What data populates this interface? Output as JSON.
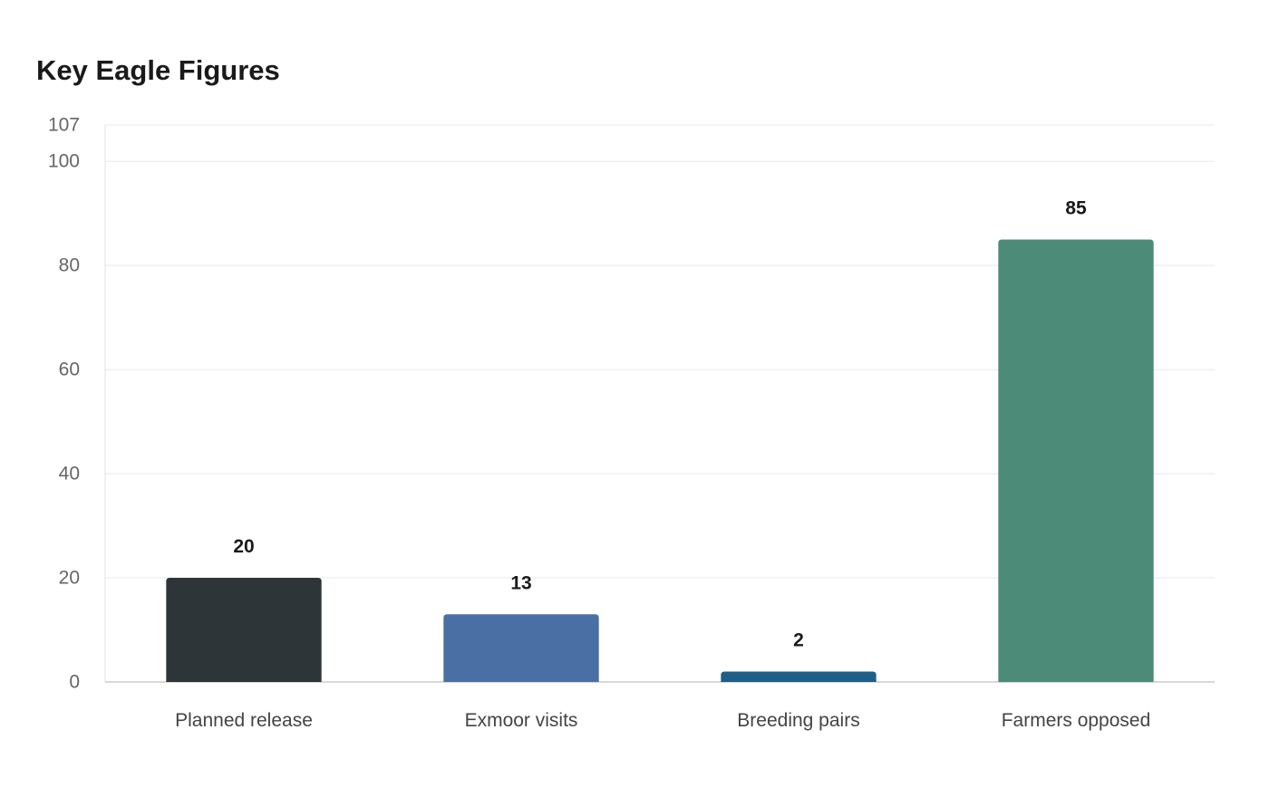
{
  "chart_data": {
    "type": "bar",
    "title": "Key Eagle Figures",
    "xlabel": "",
    "ylabel": "",
    "categories": [
      "Planned release",
      "Exmoor visits",
      "Breeding pairs",
      "Farmers opposed"
    ],
    "values": [
      20,
      13,
      2,
      85
    ],
    "value_labels": [
      "20",
      "13",
      "2",
      "85"
    ],
    "bar_colors": [
      "#2d3538",
      "#4a6fa5",
      "#1e5f8a",
      "#4d8b79"
    ],
    "ylim": [
      0,
      107
    ],
    "yticks": [
      0,
      20,
      40,
      60,
      80,
      100,
      107
    ],
    "grid": true,
    "legend": "none"
  }
}
